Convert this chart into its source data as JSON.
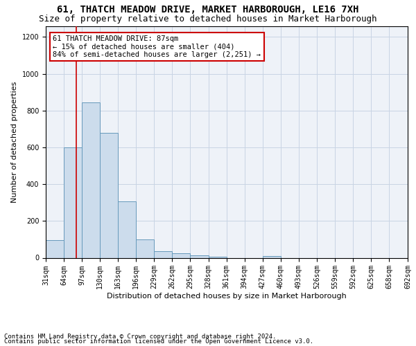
{
  "title_line1": "61, THATCH MEADOW DRIVE, MARKET HARBOROUGH, LE16 7XH",
  "title_line2": "Size of property relative to detached houses in Market Harborough",
  "xlabel": "Distribution of detached houses by size in Market Harborough",
  "ylabel": "Number of detached properties",
  "footer_line1": "Contains HM Land Registry data © Crown copyright and database right 2024.",
  "footer_line2": "Contains public sector information licensed under the Open Government Licence v3.0.",
  "property_label": "61 THATCH MEADOW DRIVE: 87sqm",
  "annotation_line2": "← 15% of detached houses are smaller (404)",
  "annotation_line3": "84% of semi-detached houses are larger (2,251) →",
  "bin_edges": [
    31,
    64,
    97,
    130,
    163,
    196,
    229,
    262,
    295,
    328,
    361,
    394,
    427,
    460,
    493,
    526,
    559,
    592,
    625,
    658,
    692
  ],
  "bar_heights": [
    95,
    600,
    845,
    680,
    305,
    100,
    35,
    25,
    15,
    5,
    0,
    0,
    10,
    0,
    0,
    0,
    0,
    0,
    0,
    0
  ],
  "bar_color": "#ccdcec",
  "bar_edge_color": "#6699bb",
  "vline_color": "#cc0000",
  "vline_x": 87,
  "ylim": [
    0,
    1260
  ],
  "yticks": [
    0,
    200,
    400,
    600,
    800,
    1000,
    1200
  ],
  "grid_color": "#c8d4e4",
  "bg_color": "#eef2f8",
  "annotation_box_facecolor": "#ffffff",
  "annotation_box_edge": "#cc0000",
  "title_fontsize": 10,
  "subtitle_fontsize": 9,
  "axis_label_fontsize": 8,
  "tick_fontsize": 7,
  "annotation_fontsize": 7.5,
  "footer_fontsize": 6.5
}
